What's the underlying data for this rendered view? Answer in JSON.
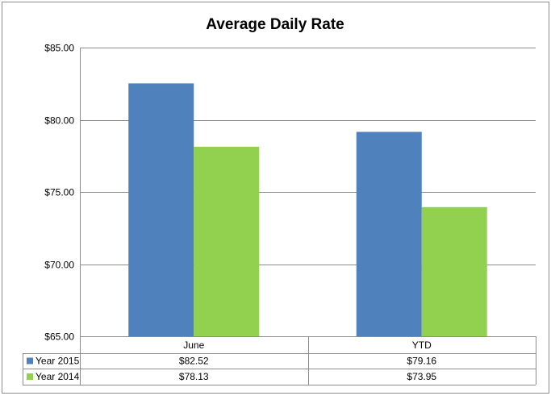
{
  "chart_data": {
    "type": "bar",
    "title": "Average Daily Rate",
    "categories": [
      "June",
      "YTD"
    ],
    "series": [
      {
        "name": "Year 2015",
        "values": [
          82.52,
          79.16
        ],
        "labels": [
          "$82.52",
          "$79.16"
        ],
        "color": "#4f81bd"
      },
      {
        "name": "Year 2014",
        "values": [
          78.13,
          73.95
        ],
        "labels": [
          "$78.13",
          "$73.95"
        ],
        "color": "#92d050"
      }
    ],
    "ylim": [
      65,
      85
    ],
    "yticks": [
      65,
      70,
      75,
      80,
      85
    ],
    "ytick_labels": [
      "$65.00",
      "$70.00",
      "$75.00",
      "$80.00",
      "$85.00"
    ],
    "xlabel": "",
    "ylabel": "",
    "grid": true,
    "legend": "data-table-left",
    "data_table": true
  }
}
